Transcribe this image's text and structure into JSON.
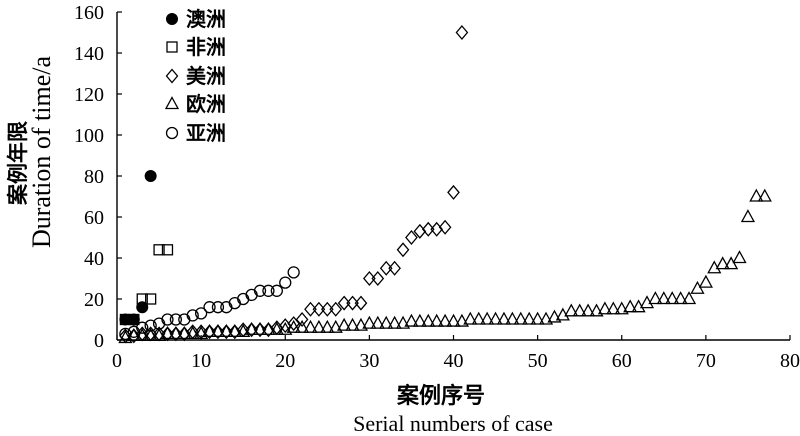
{
  "chart_data": {
    "type": "scatter",
    "xlabel": [
      "案例序号",
      "Serial numbers of case"
    ],
    "ylabel": [
      "案例年限",
      "Duration of time/a"
    ],
    "xlim": [
      0,
      80
    ],
    "ylim": [
      0,
      160
    ],
    "xticks": [
      0,
      10,
      20,
      30,
      40,
      50,
      60,
      70,
      80
    ],
    "yticks": [
      0,
      20,
      40,
      60,
      80,
      100,
      120,
      140,
      160
    ],
    "grid": false,
    "legend_position": "top-left",
    "series": [
      {
        "name": "澳洲",
        "marker": "filled-circle",
        "color": "#000000",
        "x": [
          1,
          2,
          3,
          4
        ],
        "y": [
          10,
          10,
          16,
          80
        ]
      },
      {
        "name": "非洲",
        "marker": "open-square",
        "color": "#000000",
        "x": [
          1,
          2,
          3,
          4,
          5,
          6
        ],
        "y": [
          10,
          10,
          20,
          20,
          44,
          44
        ]
      },
      {
        "name": "美洲",
        "marker": "open-diamond",
        "color": "#000000",
        "x": [
          1,
          2,
          3,
          4,
          5,
          6,
          7,
          8,
          9,
          10,
          11,
          12,
          13,
          14,
          15,
          16,
          17,
          18,
          19,
          20,
          21,
          22,
          23,
          24,
          25,
          26,
          27,
          28,
          29,
          30,
          31,
          32,
          33,
          34,
          35,
          36,
          37,
          38,
          39,
          40,
          41
        ],
        "y": [
          2,
          2,
          3,
          3,
          3,
          3,
          3,
          3,
          4,
          4,
          4,
          4,
          4,
          4,
          5,
          5,
          5,
          5,
          6,
          7,
          8,
          10,
          15,
          15,
          15,
          15,
          18,
          18,
          18,
          30,
          30,
          35,
          35,
          44,
          50,
          53,
          54,
          54,
          55,
          72,
          150
        ]
      },
      {
        "name": "欧洲",
        "marker": "open-triangle",
        "color": "#000000",
        "x": [
          1,
          2,
          3,
          4,
          5,
          6,
          7,
          8,
          9,
          10,
          11,
          12,
          13,
          14,
          15,
          16,
          17,
          18,
          19,
          20,
          21,
          22,
          23,
          24,
          25,
          26,
          27,
          28,
          29,
          30,
          31,
          32,
          33,
          34,
          35,
          36,
          37,
          38,
          39,
          40,
          41,
          42,
          43,
          44,
          45,
          46,
          47,
          48,
          49,
          50,
          51,
          52,
          53,
          54,
          55,
          56,
          57,
          58,
          59,
          60,
          61,
          62,
          63,
          64,
          65,
          66,
          67,
          68,
          69,
          70,
          71,
          72,
          73,
          74,
          75,
          76,
          77
        ],
        "y": [
          1,
          2,
          2,
          2,
          2,
          3,
          3,
          3,
          3,
          3,
          4,
          4,
          4,
          4,
          4,
          5,
          5,
          5,
          5,
          5,
          6,
          6,
          6,
          6,
          6,
          6,
          7,
          7,
          7,
          8,
          8,
          8,
          8,
          8,
          9,
          9,
          9,
          9,
          9,
          9,
          9,
          10,
          10,
          10,
          10,
          10,
          10,
          10,
          10,
          10,
          10,
          11,
          12,
          14,
          14,
          14,
          14,
          15,
          15,
          15,
          16,
          16,
          18,
          20,
          20,
          20,
          20,
          20,
          25,
          28,
          35,
          37,
          37,
          40,
          60,
          70,
          70
        ]
      },
      {
        "name": "亚洲",
        "marker": "open-circle",
        "color": "#000000",
        "x": [
          1,
          2,
          3,
          4,
          5,
          6,
          7,
          8,
          9,
          10,
          11,
          12,
          13,
          14,
          15,
          16,
          17,
          18,
          19,
          20,
          21
        ],
        "y": [
          3,
          4,
          6,
          7,
          8,
          10,
          10,
          10,
          12,
          13,
          16,
          16,
          16,
          18,
          20,
          22,
          24,
          24,
          24,
          28,
          33
        ]
      }
    ]
  }
}
